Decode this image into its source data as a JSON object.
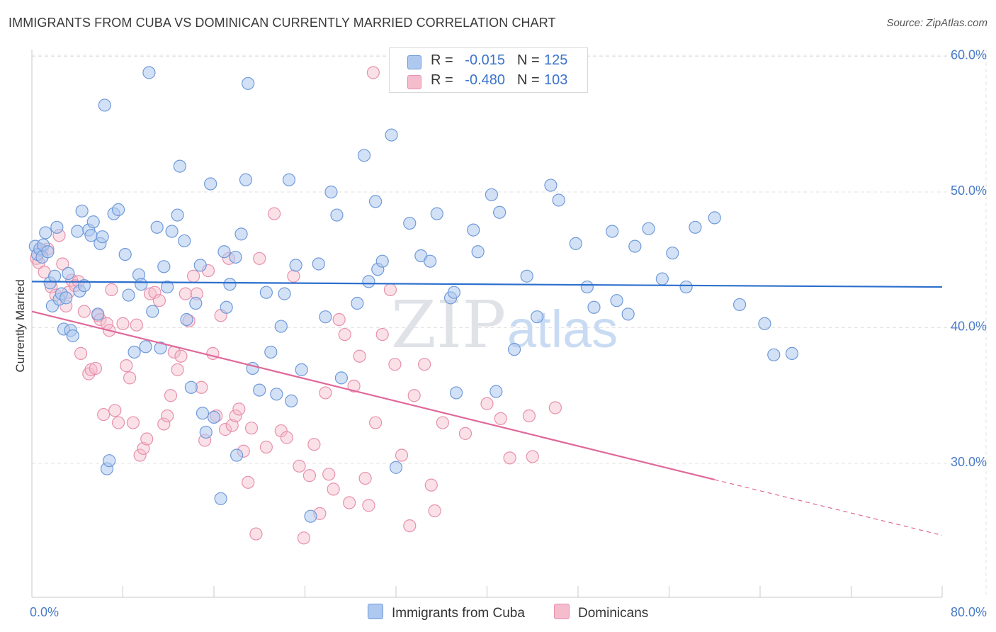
{
  "header": {
    "title": "IMMIGRANTS FROM CUBA VS DOMINICAN CURRENTLY MARRIED CORRELATION CHART",
    "source": "Source: ZipAtlas.com"
  },
  "watermark": {
    "zip": "ZIP",
    "atlas": "atlas"
  },
  "legend": {
    "rows": [
      {
        "r_label": "R =",
        "r_value": "-0.015",
        "n_label": "N =",
        "n_value": "125"
      },
      {
        "r_label": "R =",
        "r_value": "-0.480",
        "n_label": "N =",
        "n_value": "103"
      }
    ]
  },
  "bottom_legend": {
    "cuba": "Immigrants from Cuba",
    "dominican": "Dominicans"
  },
  "colors": {
    "cuba_fill": "#aec8ef",
    "cuba_stroke": "#6f9ad9",
    "cuba_line": "#2c6fcd",
    "dom_fill": "#f5bccd",
    "dom_stroke": "#e890ac",
    "dom_line": "#e0689a",
    "tick_label": "#4a7cc9",
    "grid": "#e3e3e3"
  },
  "chart_data": {
    "type": "scatter",
    "title": "IMMIGRANTS FROM CUBA VS DOMINICAN CURRENTLY MARRIED CORRELATION CHART",
    "xlabel": "",
    "ylabel": "Currently Married",
    "xlim": [
      0,
      80
    ],
    "ylim": [
      21,
      62
    ],
    "x_ticks": [
      0,
      80
    ],
    "x_tick_labels": [
      "0.0%",
      "80.0%"
    ],
    "y_ticks": [
      30,
      40,
      50,
      60
    ],
    "y_tick_labels": [
      "30.0%",
      "40.0%",
      "50.0%",
      "60.0%"
    ],
    "grid": true,
    "legend_placement": "top-center",
    "series": [
      {
        "name": "Immigrants from Cuba",
        "r": -0.015,
        "n": 125,
        "trend": {
          "x": [
            0,
            80
          ],
          "y": [
            43.4,
            43.0
          ]
        },
        "points": [
          [
            0.3,
            46.0
          ],
          [
            0.5,
            45.4
          ],
          [
            0.7,
            45.8
          ],
          [
            0.9,
            45.2
          ],
          [
            1.0,
            46.1
          ],
          [
            1.2,
            47.0
          ],
          [
            1.4,
            45.6
          ],
          [
            1.6,
            43.3
          ],
          [
            1.8,
            41.6
          ],
          [
            2.0,
            43.8
          ],
          [
            2.2,
            47.4
          ],
          [
            2.4,
            42.1
          ],
          [
            2.6,
            42.5
          ],
          [
            2.8,
            39.9
          ],
          [
            3.0,
            42.2
          ],
          [
            3.2,
            44.0
          ],
          [
            3.4,
            39.8
          ],
          [
            3.6,
            39.4
          ],
          [
            4.0,
            47.1
          ],
          [
            4.2,
            42.7
          ],
          [
            4.4,
            48.6
          ],
          [
            4.6,
            43.1
          ],
          [
            5.0,
            47.2
          ],
          [
            5.2,
            46.8
          ],
          [
            5.4,
            47.8
          ],
          [
            5.8,
            41.0
          ],
          [
            6.0,
            46.2
          ],
          [
            6.2,
            46.7
          ],
          [
            6.4,
            56.4
          ],
          [
            6.6,
            29.6
          ],
          [
            6.8,
            30.2
          ],
          [
            7.2,
            48.4
          ],
          [
            7.6,
            48.7
          ],
          [
            8.2,
            45.4
          ],
          [
            8.5,
            42.4
          ],
          [
            9.0,
            38.2
          ],
          [
            9.4,
            43.9
          ],
          [
            9.6,
            43.2
          ],
          [
            10.0,
            38.6
          ],
          [
            10.3,
            58.8
          ],
          [
            10.6,
            41.2
          ],
          [
            11.0,
            47.4
          ],
          [
            11.3,
            38.5
          ],
          [
            11.6,
            44.5
          ],
          [
            11.9,
            43.0
          ],
          [
            12.3,
            47.1
          ],
          [
            12.8,
            48.3
          ],
          [
            13.0,
            51.9
          ],
          [
            13.4,
            46.4
          ],
          [
            13.6,
            40.6
          ],
          [
            14.0,
            35.6
          ],
          [
            14.4,
            41.8
          ],
          [
            14.8,
            44.6
          ],
          [
            15.0,
            33.7
          ],
          [
            15.3,
            32.3
          ],
          [
            15.7,
            50.6
          ],
          [
            16.0,
            33.4
          ],
          [
            16.6,
            27.4
          ],
          [
            16.9,
            45.6
          ],
          [
            17.1,
            41.5
          ],
          [
            17.4,
            43.2
          ],
          [
            17.9,
            45.2
          ],
          [
            18.0,
            30.6
          ],
          [
            18.4,
            46.9
          ],
          [
            18.8,
            50.9
          ],
          [
            19.0,
            58.0
          ],
          [
            19.4,
            37.0
          ],
          [
            20.0,
            35.4
          ],
          [
            20.6,
            42.6
          ],
          [
            21.0,
            38.2
          ],
          [
            21.5,
            35.1
          ],
          [
            21.9,
            40.1
          ],
          [
            22.2,
            42.5
          ],
          [
            22.6,
            50.9
          ],
          [
            22.8,
            34.6
          ],
          [
            23.2,
            44.6
          ],
          [
            23.7,
            36.9
          ],
          [
            24.5,
            26.1
          ],
          [
            25.2,
            44.7
          ],
          [
            25.8,
            40.8
          ],
          [
            26.3,
            50.0
          ],
          [
            26.8,
            48.3
          ],
          [
            27.2,
            36.3
          ],
          [
            28.6,
            41.8
          ],
          [
            29.2,
            52.7
          ],
          [
            29.6,
            43.4
          ],
          [
            30.2,
            49.3
          ],
          [
            30.4,
            44.3
          ],
          [
            30.8,
            44.9
          ],
          [
            31.6,
            54.2
          ],
          [
            32.0,
            29.7
          ],
          [
            33.2,
            47.7
          ],
          [
            34.2,
            45.3
          ],
          [
            35.0,
            44.9
          ],
          [
            35.6,
            48.4
          ],
          [
            36.8,
            42.2
          ],
          [
            37.1,
            42.6
          ],
          [
            37.3,
            35.2
          ],
          [
            38.8,
            47.2
          ],
          [
            39.2,
            45.6
          ],
          [
            40.4,
            49.8
          ],
          [
            40.8,
            35.3
          ],
          [
            41.1,
            48.5
          ],
          [
            42.4,
            38.4
          ],
          [
            43.5,
            43.8
          ],
          [
            44.4,
            40.8
          ],
          [
            45.6,
            50.5
          ],
          [
            46.3,
            49.4
          ],
          [
            47.8,
            46.2
          ],
          [
            48.8,
            43.0
          ],
          [
            49.4,
            41.5
          ],
          [
            51.0,
            47.1
          ],
          [
            51.4,
            42.0
          ],
          [
            52.4,
            41.0
          ],
          [
            54.2,
            47.3
          ],
          [
            55.4,
            43.6
          ],
          [
            56.3,
            45.5
          ],
          [
            57.5,
            43.0
          ],
          [
            58.3,
            47.4
          ],
          [
            60.0,
            48.1
          ],
          [
            62.2,
            41.7
          ],
          [
            64.4,
            40.3
          ],
          [
            65.2,
            38.0
          ],
          [
            66.8,
            38.1
          ],
          [
            53.0,
            46.0
          ]
        ]
      },
      {
        "name": "Dominicans",
        "r": -0.48,
        "n": 103,
        "trend": {
          "x": [
            0,
            60
          ],
          "y": [
            41.2,
            28.8
          ]
        },
        "trend_dashed": {
          "x": [
            60,
            80
          ],
          "y": [
            28.8,
            24.7
          ]
        },
        "points": [
          [
            0.4,
            45.1
          ],
          [
            0.6,
            44.8
          ],
          [
            0.9,
            45.7
          ],
          [
            1.1,
            44.1
          ],
          [
            1.4,
            45.8
          ],
          [
            1.7,
            43.0
          ],
          [
            2.1,
            42.4
          ],
          [
            2.4,
            46.8
          ],
          [
            2.7,
            44.7
          ],
          [
            3.0,
            41.6
          ],
          [
            3.2,
            42.6
          ],
          [
            3.5,
            43.5
          ],
          [
            3.8,
            43.1
          ],
          [
            4.1,
            43.4
          ],
          [
            4.3,
            38.1
          ],
          [
            4.6,
            41.2
          ],
          [
            5.0,
            36.6
          ],
          [
            5.2,
            36.9
          ],
          [
            5.6,
            37.0
          ],
          [
            5.8,
            40.9
          ],
          [
            6.0,
            40.6
          ],
          [
            6.3,
            33.6
          ],
          [
            6.6,
            40.3
          ],
          [
            6.8,
            39.8
          ],
          [
            7.0,
            42.8
          ],
          [
            7.3,
            33.9
          ],
          [
            7.6,
            33.0
          ],
          [
            8.0,
            40.3
          ],
          [
            8.3,
            37.2
          ],
          [
            8.6,
            36.3
          ],
          [
            8.9,
            33.0
          ],
          [
            9.2,
            40.2
          ],
          [
            9.5,
            30.6
          ],
          [
            9.8,
            31.1
          ],
          [
            10.1,
            31.8
          ],
          [
            10.4,
            42.5
          ],
          [
            10.8,
            42.6
          ],
          [
            11.2,
            42.0
          ],
          [
            11.6,
            32.9
          ],
          [
            11.9,
            33.5
          ],
          [
            12.2,
            35.0
          ],
          [
            12.5,
            38.2
          ],
          [
            12.8,
            36.9
          ],
          [
            13.1,
            37.9
          ],
          [
            13.5,
            42.5
          ],
          [
            13.8,
            40.5
          ],
          [
            14.2,
            43.8
          ],
          [
            14.5,
            42.5
          ],
          [
            14.9,
            35.6
          ],
          [
            15.2,
            31.7
          ],
          [
            15.5,
            44.2
          ],
          [
            15.9,
            38.1
          ],
          [
            16.2,
            33.5
          ],
          [
            16.6,
            40.9
          ],
          [
            17.0,
            32.5
          ],
          [
            17.3,
            45.1
          ],
          [
            17.6,
            32.8
          ],
          [
            17.9,
            33.5
          ],
          [
            18.2,
            34.0
          ],
          [
            18.6,
            30.9
          ],
          [
            19.0,
            28.6
          ],
          [
            19.3,
            32.6
          ],
          [
            19.7,
            24.8
          ],
          [
            20.0,
            45.1
          ],
          [
            20.6,
            31.2
          ],
          [
            21.3,
            48.4
          ],
          [
            21.9,
            32.4
          ],
          [
            22.4,
            31.9
          ],
          [
            23.0,
            43.8
          ],
          [
            23.5,
            29.8
          ],
          [
            23.9,
            24.5
          ],
          [
            24.4,
            29.1
          ],
          [
            24.8,
            31.4
          ],
          [
            25.3,
            26.3
          ],
          [
            25.8,
            35.2
          ],
          [
            26.1,
            29.2
          ],
          [
            26.5,
            28.1
          ],
          [
            27.0,
            40.6
          ],
          [
            27.5,
            39.5
          ],
          [
            27.9,
            27.1
          ],
          [
            28.3,
            35.7
          ],
          [
            28.8,
            37.9
          ],
          [
            29.3,
            28.9
          ],
          [
            29.6,
            26.9
          ],
          [
            30.2,
            33.0
          ],
          [
            30.8,
            39.5
          ],
          [
            31.5,
            42.8
          ],
          [
            31.9,
            37.3
          ],
          [
            32.5,
            30.6
          ],
          [
            33.2,
            25.4
          ],
          [
            33.6,
            35.0
          ],
          [
            34.5,
            37.3
          ],
          [
            35.1,
            28.4
          ],
          [
            35.4,
            26.5
          ],
          [
            36.1,
            33.0
          ],
          [
            38.1,
            32.2
          ],
          [
            40.0,
            34.4
          ],
          [
            41.2,
            33.3
          ],
          [
            42.0,
            30.4
          ],
          [
            43.7,
            33.5
          ],
          [
            46.0,
            34.1
          ],
          [
            30.0,
            58.8
          ],
          [
            44.0,
            30.5
          ]
        ]
      }
    ]
  }
}
